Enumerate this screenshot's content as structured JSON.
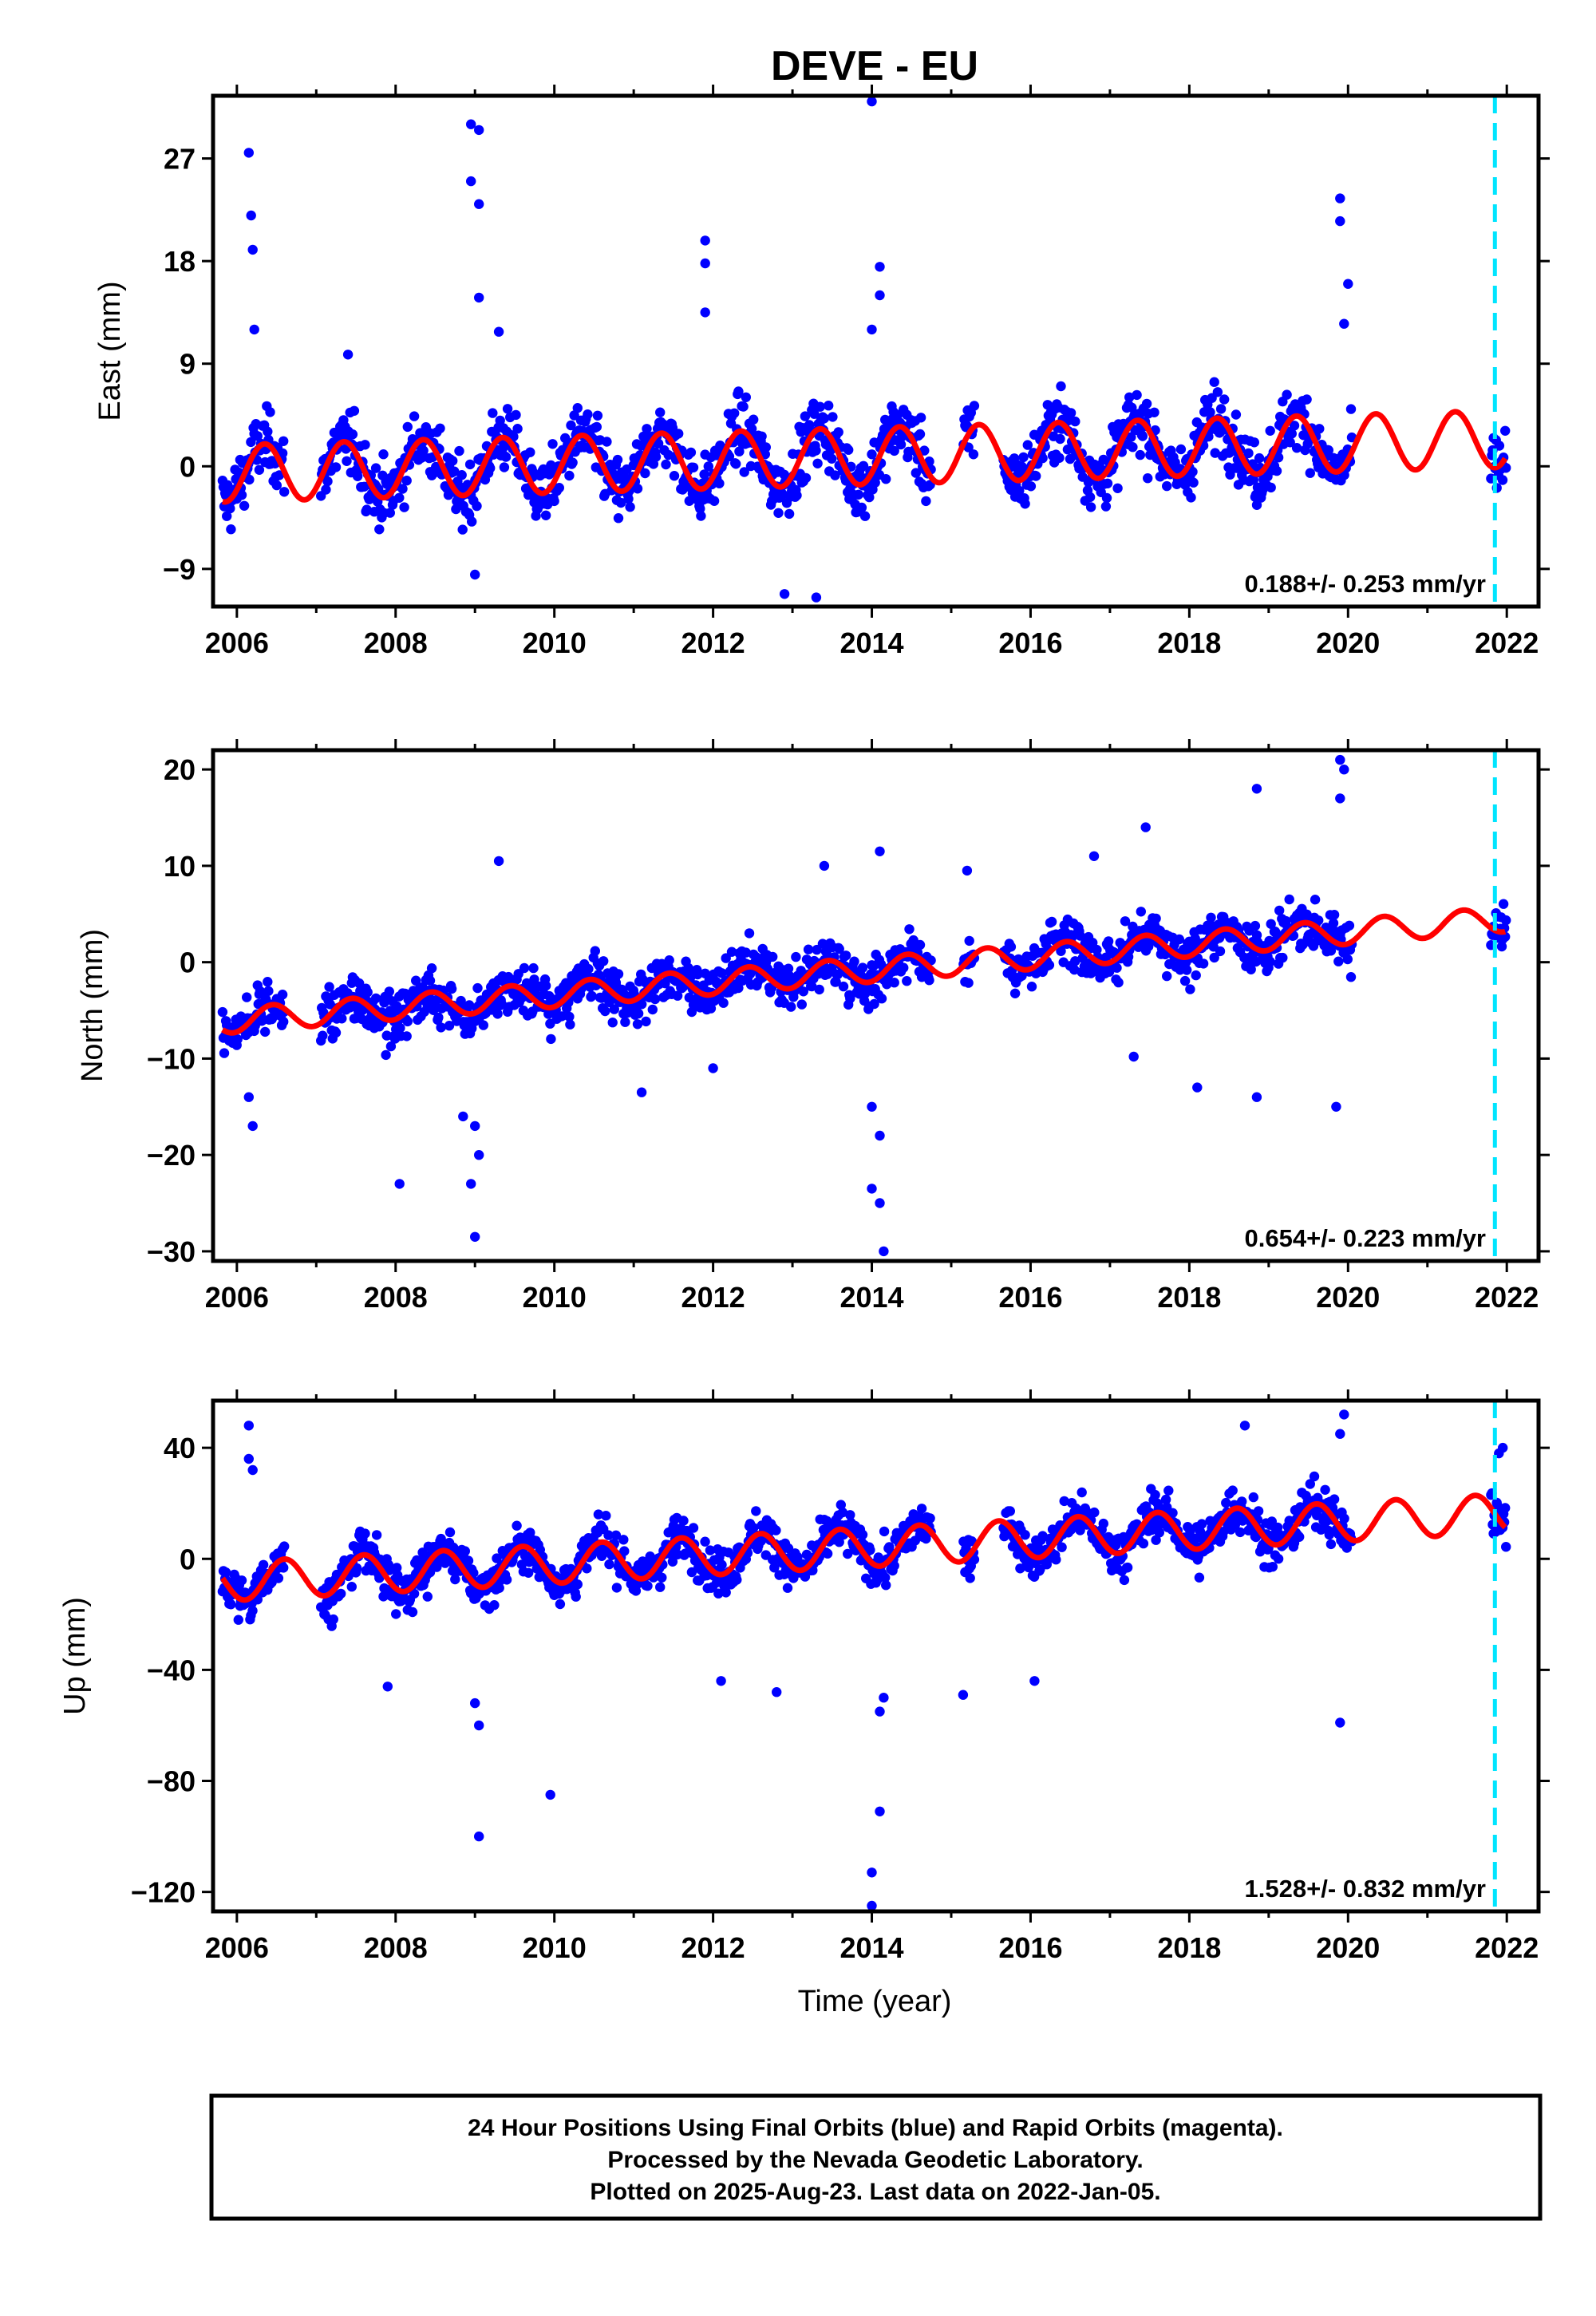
{
  "title": "DEVE - EU",
  "xlabel": "Time (year)",
  "colors": {
    "data": "#0000ff",
    "model": "#ff0000",
    "marker": "#00e5ff"
  },
  "footer": {
    "line1": "24 Hour Positions Using Final Orbits (blue) and Rapid Orbits (magenta).",
    "line2": "Processed by the Nevada Geodetic Laboratory.",
    "line3": "Plotted on 2025-Aug-23. Last data on 2022-Jan-05."
  },
  "chart_data": [
    {
      "type": "scatter",
      "ylabel": "East (mm)",
      "rate_label": "0.188+/- 0.253 mm/yr",
      "xlim": [
        2005.7,
        2022.4
      ],
      "ylim": [
        -12.3,
        32.5
      ],
      "xticks": [
        "2006",
        "2008",
        "2010",
        "2012",
        "2014",
        "2016",
        "2018",
        "2020",
        "2022"
      ],
      "yticks": [
        "-9",
        "0",
        "9",
        "18",
        "27"
      ],
      "trend": {
        "start": -0.6,
        "rate": 0.188,
        "amplitude": 2.5,
        "phase_year": 2006.35
      },
      "noise": 2.6,
      "reference_line_x": 2021.85,
      "data_gaps": [
        [
          2006.6,
          2007.05
        ],
        [
          2014.75,
          2015.15
        ],
        [
          2015.3,
          2015.65
        ],
        [
          2020.05,
          2021.8
        ]
      ],
      "outliers": [
        [
          2006.15,
          27.5
        ],
        [
          2006.18,
          22
        ],
        [
          2006.2,
          19
        ],
        [
          2006.22,
          12
        ],
        [
          2007.4,
          9.8
        ],
        [
          2008.95,
          30
        ],
        [
          2009.05,
          29.5
        ],
        [
          2008.95,
          25
        ],
        [
          2009.05,
          23
        ],
        [
          2009.05,
          14.8
        ],
        [
          2009.3,
          11.8
        ],
        [
          2011.9,
          19.8
        ],
        [
          2011.9,
          17.8
        ],
        [
          2011.9,
          13.5
        ],
        [
          2014.0,
          32
        ],
        [
          2014.1,
          17.5
        ],
        [
          2014.1,
          15
        ],
        [
          2014.0,
          12
        ],
        [
          2019.9,
          23.5
        ],
        [
          2019.9,
          21.5
        ],
        [
          2020.0,
          16
        ],
        [
          2019.95,
          12.5
        ],
        [
          2009.0,
          -9.5
        ],
        [
          2013.3,
          -11.5
        ],
        [
          2012.9,
          -11.2
        ]
      ]
    },
    {
      "type": "scatter",
      "ylabel": "North (mm)",
      "rate_label": "0.654+/- 0.223 mm/yr",
      "xlim": [
        2005.7,
        2022.4
      ],
      "ylim": [
        -31,
        22
      ],
      "xticks": [
        "2006",
        "2008",
        "2010",
        "2012",
        "2014",
        "2016",
        "2018",
        "2020",
        "2022"
      ],
      "yticks": [
        "-30",
        "-20",
        "-10",
        "0",
        "10",
        "20"
      ],
      "trend": {
        "start": -6.0,
        "rate": 0.654,
        "amplitude": 1.3,
        "phase_year": 2006.45
      },
      "noise": 2.3,
      "reference_line_x": 2021.85,
      "data_gaps": [
        [
          2006.6,
          2007.05
        ],
        [
          2014.75,
          2015.15
        ],
        [
          2015.3,
          2015.65
        ],
        [
          2020.05,
          2021.8
        ]
      ],
      "outliers": [
        [
          2006.2,
          -17
        ],
        [
          2006.15,
          -14
        ],
        [
          2008.05,
          -23
        ],
        [
          2009.0,
          -28.5
        ],
        [
          2008.95,
          -23
        ],
        [
          2009.05,
          -20
        ],
        [
          2009.0,
          -17
        ],
        [
          2008.85,
          -16
        ],
        [
          2014.0,
          -23.5
        ],
        [
          2014.1,
          -25
        ],
        [
          2014.15,
          -30
        ],
        [
          2014.1,
          -18
        ],
        [
          2014.0,
          -15
        ],
        [
          2009.3,
          10.5
        ],
        [
          2013.4,
          10
        ],
        [
          2014.1,
          11.5
        ],
        [
          2016.8,
          11
        ],
        [
          2017.45,
          14
        ],
        [
          2018.85,
          18
        ],
        [
          2019.9,
          21
        ],
        [
          2019.95,
          20
        ],
        [
          2019.9,
          17
        ],
        [
          2018.85,
          -14
        ],
        [
          2019.85,
          -15
        ],
        [
          2017.3,
          -9.8
        ],
        [
          2018.1,
          -13
        ],
        [
          2011.1,
          -13.5
        ],
        [
          2012.0,
          -11
        ],
        [
          2015.2,
          9.5
        ]
      ]
    },
    {
      "type": "scatter",
      "ylabel": "Up (mm)",
      "rate_label": "1.528+/- 0.832 mm/yr",
      "xlim": [
        2005.7,
        2022.4
      ],
      "ylim": [
        -127,
        57
      ],
      "xticks": [
        "2006",
        "2008",
        "2010",
        "2012",
        "2014",
        "2016",
        "2018",
        "2020",
        "2022"
      ],
      "yticks": [
        "-120",
        "-80",
        "-40",
        "0",
        "40"
      ],
      "trend": {
        "start": -8,
        "rate": 1.528,
        "amplitude": 7,
        "phase_year": 2006.6
      },
      "noise": 7.5,
      "reference_line_x": 2021.85,
      "data_gaps": [
        [
          2006.6,
          2007.05
        ],
        [
          2014.75,
          2015.15
        ],
        [
          2015.3,
          2015.65
        ],
        [
          2020.05,
          2021.8
        ]
      ],
      "outliers": [
        [
          2006.15,
          48
        ],
        [
          2006.15,
          36
        ],
        [
          2006.2,
          32
        ],
        [
          2009.05,
          -100
        ],
        [
          2009.95,
          -85
        ],
        [
          2009.05,
          -60
        ],
        [
          2009.0,
          -52
        ],
        [
          2014.0,
          -125
        ],
        [
          2014.0,
          -113
        ],
        [
          2014.1,
          -91
        ],
        [
          2014.1,
          -55
        ],
        [
          2014.15,
          -50
        ],
        [
          2018.7,
          48
        ],
        [
          2019.95,
          52
        ],
        [
          2019.9,
          45
        ],
        [
          2019.9,
          -59
        ],
        [
          2007.9,
          -46
        ],
        [
          2012.1,
          -44
        ],
        [
          2012.8,
          -48
        ],
        [
          2015.15,
          -49
        ],
        [
          2016.05,
          -44
        ],
        [
          2021.95,
          40
        ],
        [
          2021.9,
          38
        ]
      ]
    }
  ]
}
